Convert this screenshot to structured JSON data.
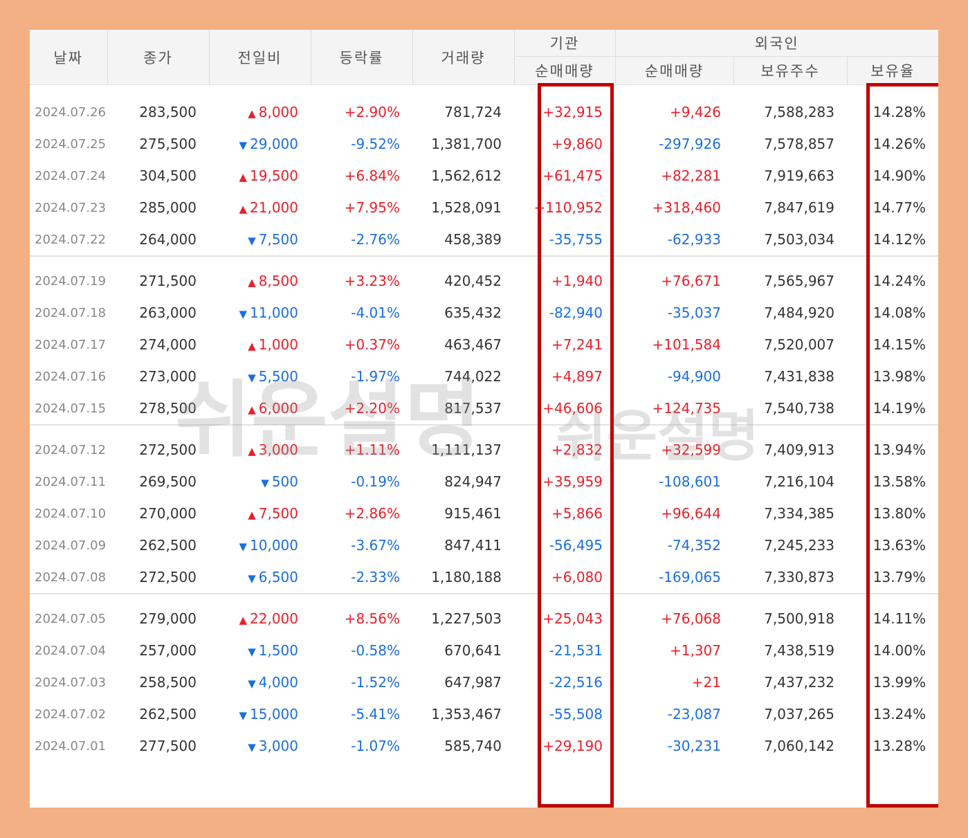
{
  "headers": {
    "date": "날짜",
    "close": "종가",
    "change": "전일비",
    "rate": "등락률",
    "volume": "거래량",
    "institution_group": "기관",
    "institution_net": "순매매량",
    "foreign_group": "외국인",
    "foreign_net": "순매매량",
    "foreign_holdings": "보유주수",
    "foreign_ratio": "보유율"
  },
  "colors": {
    "up": "#e8202a",
    "down": "#1a6fe0",
    "highlight": "#c00000",
    "frame": "#f3b084"
  },
  "watermark": {
    "large": "쉬운설명",
    "small": "쉬운설명"
  },
  "groups": [
    [
      {
        "date": "2024.07.26",
        "close": "283,500",
        "dir": "up",
        "change": "8,000",
        "rate": "+2.90%",
        "volume": "781,724",
        "inst": "+32,915",
        "frgn": "+9,426",
        "holdings": "7,588,283",
        "ratio": "14.28%"
      },
      {
        "date": "2024.07.25",
        "close": "275,500",
        "dir": "down",
        "change": "29,000",
        "rate": "-9.52%",
        "volume": "1,381,700",
        "inst": "+9,860",
        "frgn": "-297,926",
        "holdings": "7,578,857",
        "ratio": "14.26%"
      },
      {
        "date": "2024.07.24",
        "close": "304,500",
        "dir": "up",
        "change": "19,500",
        "rate": "+6.84%",
        "volume": "1,562,612",
        "inst": "+61,475",
        "frgn": "+82,281",
        "holdings": "7,919,663",
        "ratio": "14.90%"
      },
      {
        "date": "2024.07.23",
        "close": "285,000",
        "dir": "up",
        "change": "21,000",
        "rate": "+7.95%",
        "volume": "1,528,091",
        "inst": "+110,952",
        "frgn": "+318,460",
        "holdings": "7,847,619",
        "ratio": "14.77%"
      },
      {
        "date": "2024.07.22",
        "close": "264,000",
        "dir": "down",
        "change": "7,500",
        "rate": "-2.76%",
        "volume": "458,389",
        "inst": "-35,755",
        "frgn": "-62,933",
        "holdings": "7,503,034",
        "ratio": "14.12%"
      }
    ],
    [
      {
        "date": "2024.07.19",
        "close": "271,500",
        "dir": "up",
        "change": "8,500",
        "rate": "+3.23%",
        "volume": "420,452",
        "inst": "+1,940",
        "frgn": "+76,671",
        "holdings": "7,565,967",
        "ratio": "14.24%"
      },
      {
        "date": "2024.07.18",
        "close": "263,000",
        "dir": "down",
        "change": "11,000",
        "rate": "-4.01%",
        "volume": "635,432",
        "inst": "-82,940",
        "frgn": "-35,037",
        "holdings": "7,484,920",
        "ratio": "14.08%"
      },
      {
        "date": "2024.07.17",
        "close": "274,000",
        "dir": "up",
        "change": "1,000",
        "rate": "+0.37%",
        "volume": "463,467",
        "inst": "+7,241",
        "frgn": "+101,584",
        "holdings": "7,520,007",
        "ratio": "14.15%"
      },
      {
        "date": "2024.07.16",
        "close": "273,000",
        "dir": "down",
        "change": "5,500",
        "rate": "-1.97%",
        "volume": "744,022",
        "inst": "+4,897",
        "frgn": "-94,900",
        "holdings": "7,431,838",
        "ratio": "13.98%"
      },
      {
        "date": "2024.07.15",
        "close": "278,500",
        "dir": "up",
        "change": "6,000",
        "rate": "+2.20%",
        "volume": "817,537",
        "inst": "+46,606",
        "frgn": "+124,735",
        "holdings": "7,540,738",
        "ratio": "14.19%"
      }
    ],
    [
      {
        "date": "2024.07.12",
        "close": "272,500",
        "dir": "up",
        "change": "3,000",
        "rate": "+1.11%",
        "volume": "1,111,137",
        "inst": "+2,832",
        "frgn": "+32,599",
        "holdings": "7,409,913",
        "ratio": "13.94%"
      },
      {
        "date": "2024.07.11",
        "close": "269,500",
        "dir": "down",
        "change": "500",
        "rate": "-0.19%",
        "volume": "824,947",
        "inst": "+35,959",
        "frgn": "-108,601",
        "holdings": "7,216,104",
        "ratio": "13.58%"
      },
      {
        "date": "2024.07.10",
        "close": "270,000",
        "dir": "up",
        "change": "7,500",
        "rate": "+2.86%",
        "volume": "915,461",
        "inst": "+5,866",
        "frgn": "+96,644",
        "holdings": "7,334,385",
        "ratio": "13.80%"
      },
      {
        "date": "2024.07.09",
        "close": "262,500",
        "dir": "down",
        "change": "10,000",
        "rate": "-3.67%",
        "volume": "847,411",
        "inst": "-56,495",
        "frgn": "-74,352",
        "holdings": "7,245,233",
        "ratio": "13.63%"
      },
      {
        "date": "2024.07.08",
        "close": "272,500",
        "dir": "down",
        "change": "6,500",
        "rate": "-2.33%",
        "volume": "1,180,188",
        "inst": "+6,080",
        "frgn": "-169,065",
        "holdings": "7,330,873",
        "ratio": "13.79%"
      }
    ],
    [
      {
        "date": "2024.07.05",
        "close": "279,000",
        "dir": "up",
        "change": "22,000",
        "rate": "+8.56%",
        "volume": "1,227,503",
        "inst": "+25,043",
        "frgn": "+76,068",
        "holdings": "7,500,918",
        "ratio": "14.11%"
      },
      {
        "date": "2024.07.04",
        "close": "257,000",
        "dir": "down",
        "change": "1,500",
        "rate": "-0.58%",
        "volume": "670,641",
        "inst": "-21,531",
        "frgn": "+1,307",
        "holdings": "7,438,519",
        "ratio": "14.00%"
      },
      {
        "date": "2024.07.03",
        "close": "258,500",
        "dir": "down",
        "change": "4,000",
        "rate": "-1.52%",
        "volume": "647,987",
        "inst": "-22,516",
        "frgn": "+21",
        "holdings": "7,437,232",
        "ratio": "13.99%"
      },
      {
        "date": "2024.07.02",
        "close": "262,500",
        "dir": "down",
        "change": "15,000",
        "rate": "-5.41%",
        "volume": "1,353,467",
        "inst": "-55,508",
        "frgn": "-23,087",
        "holdings": "7,037,265",
        "ratio": "13.24%"
      },
      {
        "date": "2024.07.01",
        "close": "277,500",
        "dir": "down",
        "change": "3,000",
        "rate": "-1.07%",
        "volume": "585,740",
        "inst": "+29,190",
        "frgn": "-30,231",
        "holdings": "7,060,142",
        "ratio": "13.28%"
      }
    ]
  ]
}
